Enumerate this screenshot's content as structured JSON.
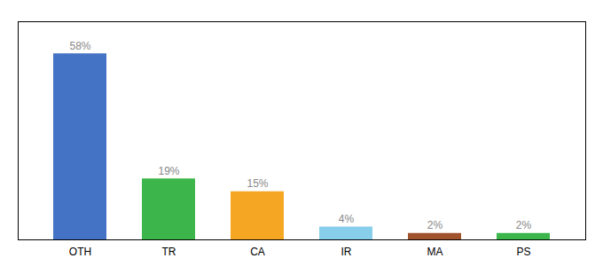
{
  "chart_data": {
    "type": "bar",
    "categories": [
      "OTH",
      "TR",
      "CA",
      "IR",
      "MA",
      "PS"
    ],
    "values": [
      58,
      19,
      15,
      4,
      2,
      2
    ],
    "value_labels": [
      "58%",
      "19%",
      "15%",
      "4%",
      "2%",
      "2%"
    ],
    "colors": [
      "#4472c4",
      "#3cb54a",
      "#f5a623",
      "#87ceeb",
      "#a0522d",
      "#3cb54a"
    ],
    "ylim": [
      0,
      68
    ],
    "data_labels": true,
    "tick_labels": "x"
  }
}
